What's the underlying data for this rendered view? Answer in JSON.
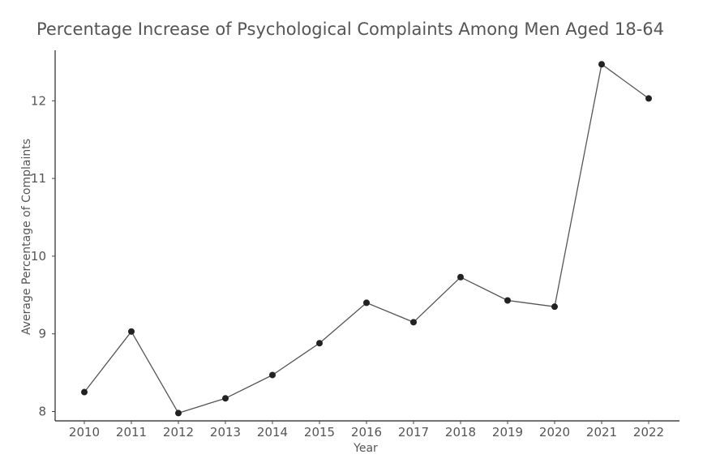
{
  "colors": {
    "line": "#555555",
    "marker": "#222222",
    "axis": "#444444",
    "text": "#555555",
    "background": "#ffffff"
  },
  "chart_data": {
    "type": "line",
    "title": "Percentage Increase of Psychological Complaints Among Men Aged 18-64",
    "xlabel": "Year",
    "ylabel": "Average Percentage of Complaints",
    "categories": [
      "2010",
      "2011",
      "2012",
      "2013",
      "2014",
      "2015",
      "2016",
      "2017",
      "2018",
      "2019",
      "2020",
      "2021",
      "2022"
    ],
    "series": [
      {
        "values": [
          8.25,
          9.03,
          7.98,
          8.17,
          8.47,
          8.88,
          9.4,
          9.15,
          9.73,
          9.43,
          9.35,
          12.47,
          12.03
        ]
      }
    ],
    "yticks": [
      8,
      9,
      10,
      11,
      12
    ],
    "ylim": [
      7.88,
      12.65
    ],
    "grid": false,
    "legend": "none",
    "markers": true
  }
}
